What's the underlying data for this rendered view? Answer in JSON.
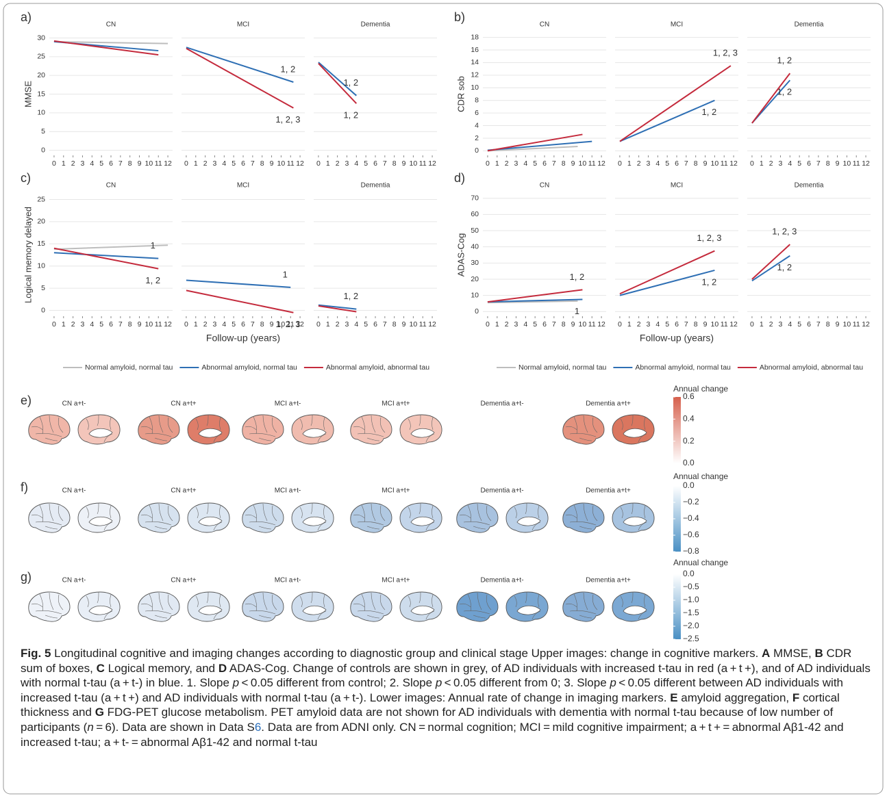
{
  "chart_data": [
    {
      "type": "line",
      "label": "a)",
      "ylabel": "MMSE",
      "facets": [
        "CN",
        "MCI",
        "Dementia"
      ],
      "xlim": [
        -0.5,
        12.5
      ],
      "xticks": [
        0,
        1,
        2,
        3,
        4,
        5,
        6,
        7,
        8,
        9,
        10,
        11,
        12
      ],
      "ylim": [
        -1,
        31
      ],
      "yticks": [
        0,
        5,
        10,
        15,
        20,
        25,
        30
      ],
      "grid": true,
      "series": [
        {
          "color": "#bdbdbd",
          "x": [
            [
              0,
              12
            ],
            null,
            null
          ],
          "values": [
            [
              29,
              28.5
            ],
            null,
            null
          ]
        },
        {
          "color": "#2e6fb4",
          "x": [
            [
              0,
              11
            ],
            [
              0,
              11.3
            ],
            [
              0,
              4
            ]
          ],
          "values": [
            [
              29,
              26.6
            ],
            [
              27.5,
              18.2
            ],
            [
              23.5,
              14.6
            ]
          ],
          "labels": [
            null,
            "1, 2",
            "1, 2"
          ]
        },
        {
          "color": "#c42a3c",
          "x": [
            [
              0,
              11
            ],
            [
              0,
              11.3
            ],
            [
              0,
              4
            ]
          ],
          "values": [
            [
              29.2,
              25.5
            ],
            [
              27.2,
              11.3
            ],
            [
              23.2,
              12.5
            ]
          ],
          "labels": [
            null,
            "1, 2, 3",
            "1, 2"
          ]
        }
      ]
    },
    {
      "type": "line",
      "label": "b)",
      "ylabel": "CDR sob",
      "facets": [
        "CN",
        "MCI",
        "Dementia"
      ],
      "xlim": [
        -0.5,
        12.5
      ],
      "xticks": [
        0,
        1,
        2,
        3,
        4,
        5,
        6,
        7,
        8,
        9,
        10,
        11,
        12
      ],
      "ylim": [
        -0.5,
        18.5
      ],
      "yticks": [
        0,
        2,
        4,
        6,
        8,
        10,
        12,
        14,
        16,
        18
      ],
      "grid": true,
      "series": [
        {
          "color": "#bdbdbd",
          "x": [
            [
              0,
              9.5
            ],
            null,
            null
          ],
          "values": [
            [
              0,
              0.7
            ],
            null,
            null
          ]
        },
        {
          "color": "#2e6fb4",
          "x": [
            [
              0,
              11
            ],
            [
              0,
              10
            ],
            [
              0,
              4
            ]
          ],
          "values": [
            [
              0.1,
              1.5
            ],
            [
              1.5,
              8
            ],
            [
              4.4,
              11.2
            ]
          ],
          "labels": [
            null,
            "1, 2",
            "1, 2"
          ]
        },
        {
          "color": "#c42a3c",
          "x": [
            [
              0,
              10
            ],
            [
              0,
              11.7
            ],
            [
              0,
              4
            ]
          ],
          "values": [
            [
              0,
              2.6
            ],
            [
              1.5,
              13.5
            ],
            [
              4.4,
              12.3
            ]
          ],
          "labels": [
            null,
            "1, 2, 3",
            "1, 2"
          ]
        }
      ]
    },
    {
      "type": "line",
      "label": "c)",
      "ylabel": "Logical memory delayed",
      "xlabel": "Follow-up (years)",
      "facets": [
        "CN",
        "MCI",
        "Dementia"
      ],
      "xlim": [
        -0.5,
        12.5
      ],
      "xticks": [
        0,
        1,
        2,
        3,
        4,
        5,
        6,
        7,
        8,
        9,
        10,
        11,
        12
      ],
      "ylim": [
        -1,
        26
      ],
      "yticks": [
        0,
        5,
        10,
        15,
        20,
        25
      ],
      "grid": true,
      "legend": true,
      "series": [
        {
          "name": "Normal amyloid, normal tau",
          "color": "#bdbdbd",
          "x": [
            [
              0,
              12
            ],
            null,
            null
          ],
          "values": [
            [
              13.8,
              14.7
            ],
            null,
            null
          ]
        },
        {
          "name": "Abnormal amyloid, normal tau",
          "color": "#2e6fb4",
          "x": [
            [
              0,
              11
            ],
            [
              0,
              11
            ],
            [
              0,
              4
            ]
          ],
          "values": [
            [
              13,
              11.7
            ],
            [
              6.8,
              5.2
            ],
            [
              1.2,
              0.3
            ]
          ],
          "labels": [
            "1",
            "1",
            "1, 2"
          ]
        },
        {
          "name": "Abnormal amyloid, abnormal tau",
          "color": "#c42a3c",
          "x": [
            [
              0,
              11
            ],
            [
              0,
              11.3
            ],
            [
              0,
              4
            ]
          ],
          "values": [
            [
              14,
              9.4
            ],
            [
              4.5,
              -0.5
            ],
            [
              1,
              -0.3
            ]
          ],
          "labels": [
            "1, 2",
            "1, 2, 3",
            null
          ]
        }
      ]
    },
    {
      "type": "line",
      "label": "d)",
      "ylabel": "ADAS-Cog",
      "xlabel": "Follow-up (years)",
      "facets": [
        "CN",
        "MCI",
        "Dementia"
      ],
      "xlim": [
        -0.5,
        12.5
      ],
      "xticks": [
        0,
        1,
        2,
        3,
        4,
        5,
        6,
        7,
        8,
        9,
        10,
        11,
        12
      ],
      "ylim": [
        -2,
        72
      ],
      "yticks": [
        0,
        10,
        20,
        30,
        40,
        50,
        60,
        70
      ],
      "grid": true,
      "legend": true,
      "series": [
        {
          "name": "Normal amyloid, normal tau",
          "color": "#bdbdbd",
          "x": [
            [
              0,
              9.5
            ],
            null,
            null
          ],
          "values": [
            [
              5.5,
              6.5
            ],
            null,
            null
          ]
        },
        {
          "name": "Abnormal amyloid, normal tau",
          "color": "#2e6fb4",
          "x": [
            [
              0,
              10
            ],
            [
              0,
              10
            ],
            [
              0,
              4
            ]
          ],
          "values": [
            [
              6,
              7.5
            ],
            [
              10,
              25.5
            ],
            [
              19,
              34.5
            ]
          ],
          "labels": [
            "1",
            "1, 2",
            "1, 2"
          ]
        },
        {
          "name": "Abnormal amyloid, abnormal tau",
          "color": "#c42a3c",
          "x": [
            [
              0,
              10
            ],
            [
              0,
              10
            ],
            [
              0,
              4
            ]
          ],
          "values": [
            [
              6,
              13.5
            ],
            [
              11,
              37.5
            ],
            [
              20,
              41.5
            ]
          ],
          "labels": [
            "1, 2",
            "1, 2, 3",
            "1, 2, 3"
          ]
        }
      ]
    }
  ],
  "brain_rows": [
    {
      "label": "e)",
      "conditions": [
        {
          "title": "CN a+t-",
          "colors": [
            "#f0b6a8",
            "#f3c5ba"
          ]
        },
        {
          "title": "CN a+t+",
          "colors": [
            "#e79b89",
            "#de7d69"
          ]
        },
        {
          "title": "MCI a+t-",
          "colors": [
            "#efb2a4",
            "#f0bcaf"
          ]
        },
        {
          "title": "MCI a+t+",
          "colors": [
            "#f2c1b5",
            "#f3c5b9"
          ]
        },
        {
          "title": "Dementia a+t-",
          "colors": null
        },
        {
          "title": "Dementia a+t+",
          "colors": [
            "#e4917d",
            "#da765f"
          ]
        }
      ],
      "colorbar": {
        "title": "Annual change",
        "lim": [
          0,
          0.6
        ],
        "colors": [
          "#ffffff",
          "#d6604d"
        ],
        "ticks": [
          {
            "value": 0,
            "label": "0.0"
          },
          0.2,
          0.4,
          0.6
        ]
      }
    },
    {
      "label": "f)",
      "conditions": [
        {
          "title": "CN a+t-",
          "colors": [
            "#e5ebf4",
            "#edf1f7"
          ]
        },
        {
          "title": "CN a+t+",
          "colors": [
            "#d6e2ef",
            "#dde7f2"
          ]
        },
        {
          "title": "MCI a+t-",
          "colors": [
            "#cddcec",
            "#d7e3f0"
          ]
        },
        {
          "title": "MCI a+t+",
          "colors": [
            "#b1c9e2",
            "#c3d5ea"
          ]
        },
        {
          "title": "Dementia a+t-",
          "colors": [
            "#a8c2df",
            "#bbd0e7"
          ]
        },
        {
          "title": "Dementia a+t+",
          "colors": [
            "#8db0d6",
            "#a7c3e0"
          ]
        }
      ],
      "colorbar": {
        "title": "Annual change",
        "lim": [
          -0.8,
          0
        ],
        "colors": [
          "#4a90c4",
          "#ffffff"
        ],
        "ticks": [
          {
            "value": 0,
            "label": "0.0"
          },
          {
            "value": -0.2,
            "label": "−0.2"
          },
          {
            "value": -0.4,
            "label": "−0.4"
          },
          {
            "value": -0.6,
            "label": "−0.6"
          },
          {
            "value": -0.8,
            "label": "−0.8"
          }
        ]
      }
    },
    {
      "label": "g)",
      "conditions": [
        {
          "title": "CN a+t-",
          "colors": [
            "#eef2f8",
            "#e8eef6"
          ]
        },
        {
          "title": "CN a+t+",
          "colors": [
            "#e1e9f3",
            "#dfe8f2"
          ]
        },
        {
          "title": "MCI a+t-",
          "colors": [
            "#c8d8eb",
            "#cfdded"
          ]
        },
        {
          "title": "MCI a+t+",
          "colors": [
            "#c8d8eb",
            "#cddcec"
          ]
        },
        {
          "title": "Dementia a+t-",
          "colors": [
            "#6fa0cf",
            "#7aa7d2"
          ]
        },
        {
          "title": "Dementia a+t+",
          "colors": [
            "#86acd4",
            "#7ba8d3"
          ]
        }
      ],
      "colorbar": {
        "title": "Annual change",
        "lim": [
          -2.5,
          0
        ],
        "colors": [
          "#4a90c4",
          "#ffffff"
        ],
        "ticks": [
          {
            "value": 0,
            "label": "0.0"
          },
          {
            "value": -0.5,
            "label": "−0.5"
          },
          {
            "value": -1,
            "label": "−1.0"
          },
          {
            "value": -1.5,
            "label": "−1.5"
          },
          {
            "value": -2,
            "label": "−2.0"
          },
          {
            "value": -2.5,
            "label": "−2.5"
          }
        ]
      }
    }
  ],
  "caption": [
    {
      "b": "Fig. 5"
    },
    {
      "t": "  Longitudinal cognitive and imaging changes according to diagnostic group and clinical stage Upper images: change in cognitive markers. "
    },
    {
      "b": "A"
    },
    {
      "t": " MMSE, "
    },
    {
      "b": "B"
    },
    {
      "t": " CDR sum of boxes, "
    },
    {
      "b": "C"
    },
    {
      "t": " Logical memory, and "
    },
    {
      "b": "D"
    },
    {
      "t": " ADAS-Cog. Change of controls are shown in grey, of AD individuals with increased t-tau in red (a + t +), and of AD individuals with normal t-tau (a + t-) in blue. 1. Slope "
    },
    {
      "i": "p"
    },
    {
      "t": " < 0.05 different from control; 2. Slope "
    },
    {
      "i": "p"
    },
    {
      "t": " < 0.05 different from 0; 3. Slope "
    },
    {
      "i": "p"
    },
    {
      "t": " < 0.05 different between AD individuals with increased t-tau (a + t +) and AD individuals with normal t-tau (a + t-). Lower images: Annual rate of change in imaging markers. "
    },
    {
      "b": "E"
    },
    {
      "t": " amyloid aggregation, "
    },
    {
      "b": "F"
    },
    {
      "t": " cortical thickness and "
    },
    {
      "b": "G"
    },
    {
      "t": " FDG-PET glucose metabolism. PET amyloid data are not shown for AD individuals with dementia with normal t-tau because of low number of participants ("
    },
    {
      "i": "n"
    },
    {
      "t": " = 6). Data are shown in Data S"
    },
    {
      "a": "6"
    },
    {
      "t": ". Data are from ADNI only. CN = normal cognition; MCI = mild cognitive impairment; a + t + = abnormal Aβ1-42 and increased t-tau; a + t- = abnormal Aβ1-42 and normal t-tau"
    }
  ]
}
